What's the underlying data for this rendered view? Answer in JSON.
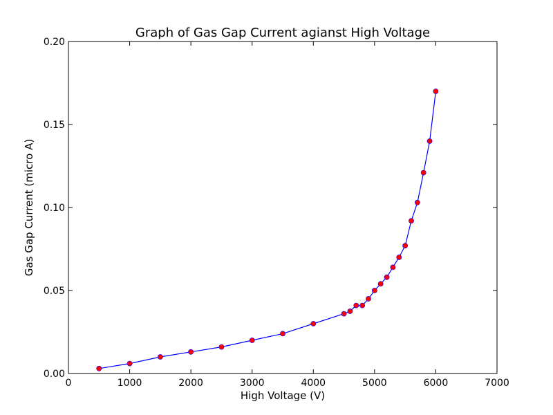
{
  "chart_data": {
    "type": "line",
    "title": "Graph of Gas Gap Current agianst High Voltage",
    "xlabel": "High Voltage (V)",
    "ylabel": "Gas Gap Current (micro A)",
    "xlim": [
      0,
      7000
    ],
    "ylim": [
      0,
      0.2
    ],
    "xticks": [
      0,
      1000,
      2000,
      3000,
      4000,
      5000,
      6000,
      7000
    ],
    "xtick_labels": [
      "0",
      "1000",
      "2000",
      "3000",
      "4000",
      "5000",
      "6000",
      "7000"
    ],
    "yticks": [
      0,
      0.05,
      0.1,
      0.15,
      0.2
    ],
    "ytick_labels": [
      "0.00",
      "0.05",
      "0.10",
      "0.15",
      "0.20"
    ],
    "grid": false,
    "series": [
      {
        "line_color": "#0000ff",
        "marker_color": "#ff0000",
        "marker_edge_color": "#0000ff",
        "x": [
          500,
          1000,
          1500,
          2000,
          2500,
          3000,
          3500,
          4000,
          4500,
          4600,
          4700,
          4800,
          4900,
          5000,
          5100,
          5200,
          5300,
          5400,
          5500,
          5600,
          5700,
          5800,
          5900,
          6000
        ],
        "y": [
          0.003,
          0.006,
          0.01,
          0.013,
          0.016,
          0.02,
          0.024,
          0.03,
          0.036,
          0.0375,
          0.041,
          0.041,
          0.045,
          0.05,
          0.054,
          0.058,
          0.064,
          0.07,
          0.077,
          0.092,
          0.103,
          0.121,
          0.14,
          0.17
        ]
      }
    ]
  }
}
